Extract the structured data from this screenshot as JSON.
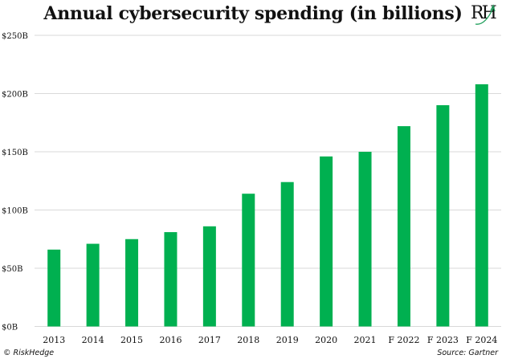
{
  "chart_data": {
    "type": "bar",
    "title": "Annual cybersecurity spending (in billions)",
    "xlabel": "",
    "ylabel": "",
    "categories": [
      "2013",
      "2014",
      "2015",
      "2016",
      "2017",
      "2018",
      "2019",
      "2020",
      "2021",
      "F 2022",
      "F 2023",
      "F 2024"
    ],
    "values": [
      66,
      71,
      75,
      81,
      86,
      114,
      124,
      146,
      150,
      172,
      190,
      208
    ],
    "ylim": [
      0,
      250
    ],
    "yticks": [
      0,
      50,
      100,
      150,
      200,
      250
    ],
    "ytick_labels": [
      "$0B",
      "$50B",
      "$100B",
      "$150B",
      "$200B",
      "$250B"
    ],
    "grid": true,
    "legend": "none",
    "bar_color": "#00B050",
    "grid_color": "#d9d9d9"
  },
  "branding": {
    "logo_text": "RH",
    "copyright": "© RiskHedge",
    "source": "Source: Gartner"
  }
}
